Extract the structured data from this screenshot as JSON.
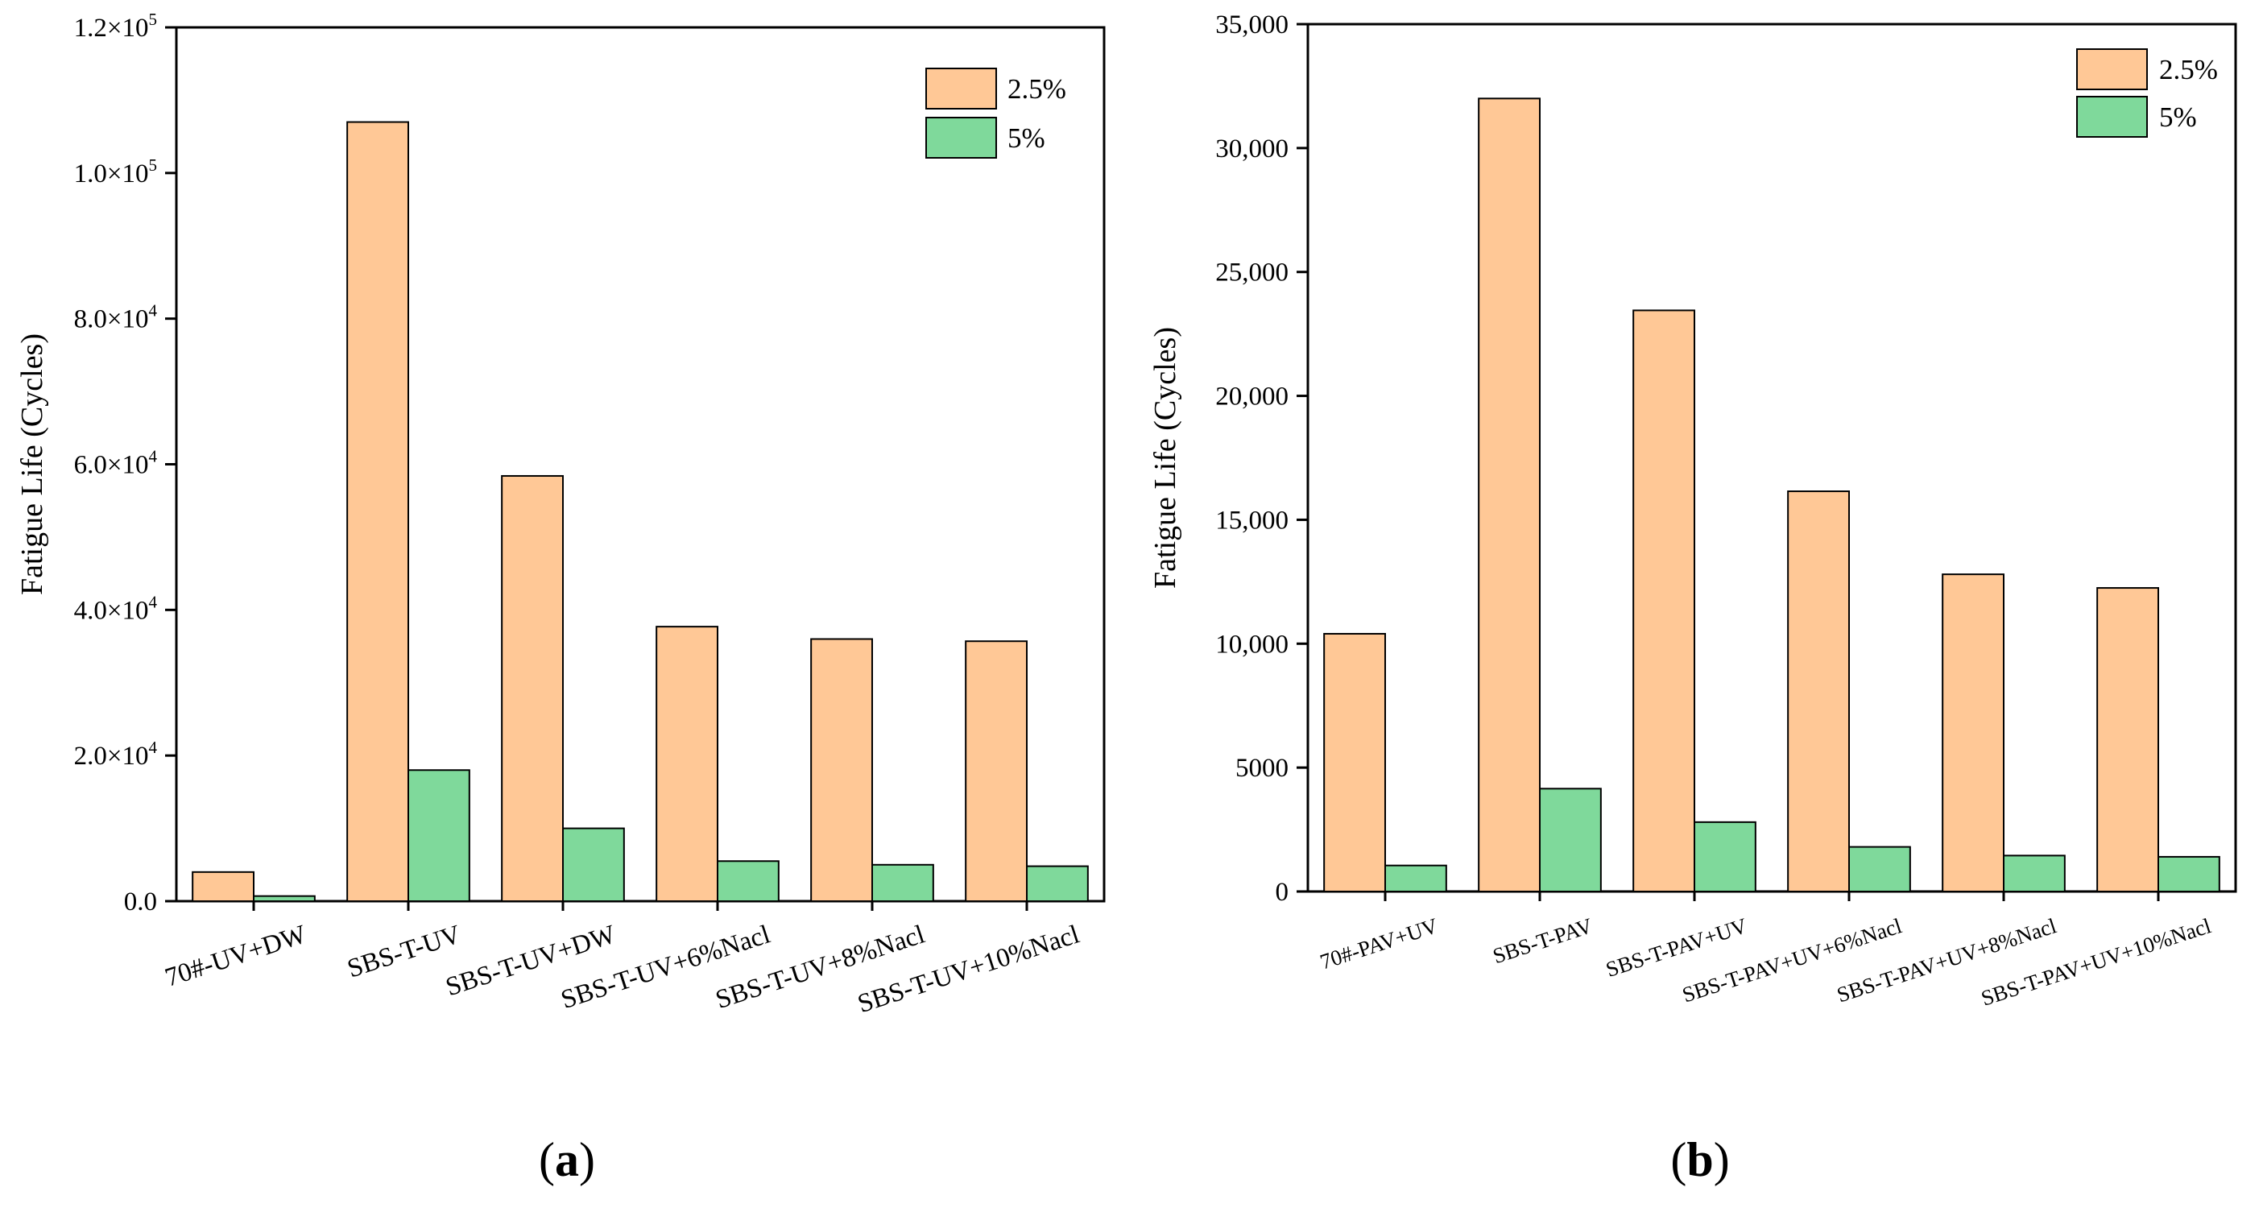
{
  "chart_data": [
    {
      "type": "bar",
      "panel_label": "(a)",
      "panel_letter": "a",
      "ylabel": "Fatigue Life (Cycles)",
      "xlabel": "",
      "ylim": [
        0,
        120000
      ],
      "ytick_values": [
        0,
        20000,
        40000,
        60000,
        80000,
        100000,
        120000
      ],
      "ytick_labels": [
        {
          "mantissa": "0.0",
          "exponent": ""
        },
        {
          "mantissa": "2.0×10",
          "exponent": "4"
        },
        {
          "mantissa": "4.0×10",
          "exponent": "4"
        },
        {
          "mantissa": "6.0×10",
          "exponent": "4"
        },
        {
          "mantissa": "8.0×10",
          "exponent": "4"
        },
        {
          "mantissa": "1.0×10",
          "exponent": "5"
        },
        {
          "mantissa": "1.2×10",
          "exponent": "5"
        }
      ],
      "categories": [
        "70#-UV+DW",
        "SBS-T-UV",
        "SBS-T-UV+DW",
        "SBS-T-UV+6%Nacl",
        "SBS-T-UV+8%Nacl",
        "SBS-T-UV+10%Nacl"
      ],
      "series": [
        {
          "name": "2.5%",
          "color": "#FFC896",
          "values": [
            4000,
            107000,
            58400,
            37700,
            36000,
            35700
          ]
        },
        {
          "name": "5%",
          "color": "#7FD99B",
          "values": [
            700,
            18000,
            10000,
            5500,
            5000,
            4800
          ]
        }
      ],
      "legend_position": "top-right"
    },
    {
      "type": "bar",
      "panel_label": "(b)",
      "panel_letter": "b",
      "ylabel": "Fatigue Life (Cycles)",
      "xlabel": "",
      "ylim": [
        0,
        35000
      ],
      "ytick_values": [
        0,
        5000,
        10000,
        15000,
        20000,
        25000,
        30000,
        35000
      ],
      "ytick_labels": [
        {
          "mantissa": "0",
          "exponent": ""
        },
        {
          "mantissa": "5000",
          "exponent": ""
        },
        {
          "mantissa": "10,000",
          "exponent": ""
        },
        {
          "mantissa": "15,000",
          "exponent": ""
        },
        {
          "mantissa": "20,000",
          "exponent": ""
        },
        {
          "mantissa": "25,000",
          "exponent": ""
        },
        {
          "mantissa": "30,000",
          "exponent": ""
        },
        {
          "mantissa": "35,000",
          "exponent": ""
        }
      ],
      "categories": [
        "70#-PAV+UV",
        "SBS-T-PAV",
        "SBS-T-PAV+UV",
        "SBS-T-PAV+UV+6%Nacl",
        "SBS-T-PAV+UV+8%Nacl",
        "SBS-T-PAV+UV+10%Nacl"
      ],
      "series": [
        {
          "name": "2.5%",
          "color": "#FFC896",
          "values": [
            10400,
            32000,
            23450,
            16150,
            12800,
            12250
          ]
        },
        {
          "name": "5%",
          "color": "#7FD99B",
          "values": [
            1050,
            4150,
            2800,
            1800,
            1450,
            1400
          ]
        }
      ],
      "legend_position": "top-right"
    }
  ]
}
